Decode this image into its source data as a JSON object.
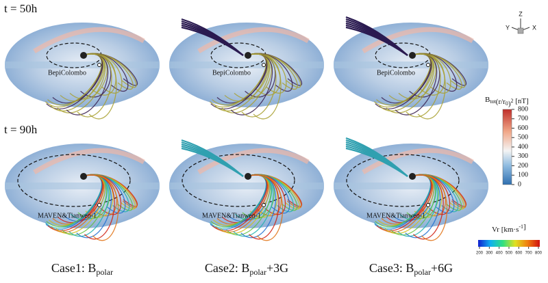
{
  "rows": [
    {
      "label": "t = 50h",
      "spacecraft": "BepiColombo"
    },
    {
      "label": "t = 90h",
      "spacecraft": "MAVEN&Tianwen-1"
    }
  ],
  "cases": [
    {
      "prefix": "Case1: B",
      "sub": "polar"
    },
    {
      "prefix": "Case2: B",
      "sub": "polar",
      "suffix": "+3G"
    },
    {
      "prefix": "Case3: B",
      "sub": "polar",
      "suffix": "+6G"
    }
  ],
  "axes_triad": {
    "z": "Z",
    "y": "Y",
    "x": "X"
  },
  "colorbar_b": {
    "title_parts": [
      {
        "text": "B"
      },
      {
        "text": "tot",
        "sub": true
      },
      {
        "text": "(r/r"
      },
      {
        "text": "0",
        "sub": true
      },
      {
        "text": ")"
      },
      {
        "text": "2",
        "sup": true
      },
      {
        "text": " [nT]"
      }
    ],
    "ticks": [
      800,
      700,
      600,
      500,
      400,
      300,
      200,
      100,
      0
    ]
  },
  "colorbar_v": {
    "title_parts": [
      {
        "text": "Vr [km·s"
      },
      {
        "text": "-1",
        "sup": true
      },
      {
        "text": "]"
      }
    ],
    "ticks": [
      200,
      300,
      400,
      500,
      600,
      700,
      800
    ]
  }
}
